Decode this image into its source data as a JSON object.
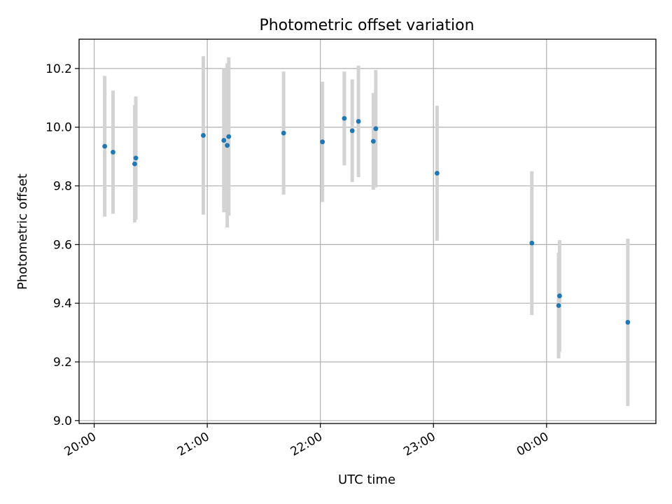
{
  "chart_data": {
    "type": "scatter",
    "title": "Photometric offset variation",
    "xlabel": "UTC time",
    "ylabel": "Photometric offset",
    "x_scale": "time",
    "xlim": [
      "19:52",
      "00:58"
    ],
    "ylim": [
      8.99,
      10.3
    ],
    "x_ticks": [
      "20:00",
      "21:00",
      "22:00",
      "23:00",
      "00:00"
    ],
    "y_ticks": [
      "9.0",
      "9.2",
      "9.4",
      "9.6",
      "9.8",
      "10.0",
      "10.2"
    ],
    "grid": true,
    "colors": {
      "point": "#1f77b4",
      "errorbar": "#d3d3d3",
      "grid": "#b0b0b0"
    },
    "series": [
      {
        "points": [
          {
            "x": "20:05:36",
            "y": 9.935,
            "yerr": 0.24
          },
          {
            "x": "20:10:00",
            "y": 9.915,
            "yerr": 0.21
          },
          {
            "x": "20:21:30",
            "y": 9.875,
            "yerr": 0.2
          },
          {
            "x": "20:22:06",
            "y": 9.895,
            "yerr": 0.21
          },
          {
            "x": "20:57:54",
            "y": 9.972,
            "yerr": 0.27
          },
          {
            "x": "21:08:48",
            "y": 9.955,
            "yerr": 0.245
          },
          {
            "x": "21:10:36",
            "y": 9.938,
            "yerr": 0.28
          },
          {
            "x": "21:11:24",
            "y": 9.968,
            "yerr": 0.27
          },
          {
            "x": "21:40:30",
            "y": 9.98,
            "yerr": 0.21
          },
          {
            "x": "22:01:06",
            "y": 9.95,
            "yerr": 0.205
          },
          {
            "x": "22:12:42",
            "y": 10.03,
            "yerr": 0.16
          },
          {
            "x": "22:16:54",
            "y": 9.988,
            "yerr": 0.175
          },
          {
            "x": "22:20:12",
            "y": 10.02,
            "yerr": 0.19
          },
          {
            "x": "22:28:06",
            "y": 9.952,
            "yerr": 0.165
          },
          {
            "x": "22:29:24",
            "y": 9.995,
            "yerr": 0.2
          },
          {
            "x": "23:01:54",
            "y": 9.843,
            "yerr": 0.23
          },
          {
            "x": "23:52:12",
            "y": 9.605,
            "yerr": 0.245
          },
          {
            "x": "00:06:24",
            "y": 9.392,
            "yerr": 0.18
          },
          {
            "x": "00:06:54",
            "y": 9.425,
            "yerr": 0.19
          },
          {
            "x": "00:43:06",
            "y": 9.335,
            "yerr": 0.285
          }
        ]
      }
    ]
  }
}
